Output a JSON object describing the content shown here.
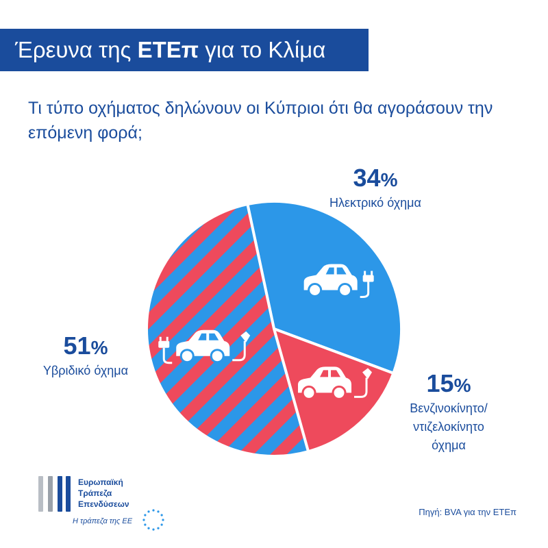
{
  "header": {
    "title_pre": "Έρευνα της ",
    "title_bold": "ΕΤΕπ",
    "title_post": " για το Κλίμα"
  },
  "question": "Τι τύπο οχήματος δηλώνουν οι Κύπριοι ότι θα αγοράσουν την επόμενη φορά;",
  "chart_data": {
    "type": "pie",
    "title": "Τι τύπο οχήματος δηλώνουν οι Κύπριοι ότι θα αγοράσουν την επόμενη φορά;",
    "unit": "%",
    "slices": [
      {
        "label": "Ηλεκτρικό όχημα",
        "value": 34,
        "display": "34",
        "color": "#2c97e8",
        "fill": "solid",
        "icon": "electric-car-icon"
      },
      {
        "label": "Βενζινοκίνητο/ ντιζελοκίνητο όχημα",
        "label_lines": [
          "Βενζινοκίνητο/",
          "ντιζελοκίνητο",
          "όχημα"
        ],
        "value": 15,
        "display": "15",
        "color": "#ee4a5c",
        "fill": "solid",
        "icon": "fuel-car-icon"
      },
      {
        "label": "Υβριδικό όχημα",
        "value": 51,
        "display": "51",
        "colors": [
          "#ee4a5c",
          "#2c97e8"
        ],
        "fill": "diagonal-stripes",
        "icon": "hybrid-car-icon"
      }
    ]
  },
  "colors": {
    "brand": "#1a4c9c",
    "electric": "#2c97e8",
    "fuel": "#ee4a5c"
  },
  "footer": {
    "logo_lines": [
      "Ευρωπαϊκή",
      "Τράπεζα",
      "Επενδύσεων"
    ],
    "logo_tagline": "Η τράπεζα της ΕΕ",
    "source": "Πηγή: BVA για την ΕΤΕπ"
  }
}
